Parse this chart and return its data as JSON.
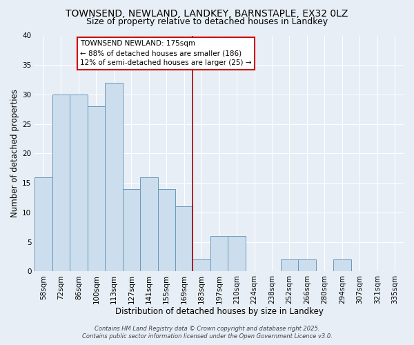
{
  "title": "TOWNSEND, NEWLAND, LANDKEY, BARNSTAPLE, EX32 0LZ",
  "subtitle": "Size of property relative to detached houses in Landkey",
  "xlabel": "Distribution of detached houses by size in Landkey",
  "ylabel": "Number of detached properties",
  "bar_labels": [
    "58sqm",
    "72sqm",
    "86sqm",
    "100sqm",
    "113sqm",
    "127sqm",
    "141sqm",
    "155sqm",
    "169sqm",
    "183sqm",
    "197sqm",
    "210sqm",
    "224sqm",
    "238sqm",
    "252sqm",
    "266sqm",
    "280sqm",
    "294sqm",
    "307sqm",
    "321sqm",
    "335sqm"
  ],
  "bar_values": [
    16,
    30,
    30,
    28,
    32,
    14,
    16,
    14,
    11,
    2,
    6,
    6,
    0,
    0,
    2,
    2,
    0,
    2,
    0,
    0,
    0
  ],
  "bar_color": "#ccdded",
  "bar_edgecolor": "#6699bb",
  "vline_color": "#aa0000",
  "ylim": [
    0,
    40
  ],
  "yticks": [
    0,
    5,
    10,
    15,
    20,
    25,
    30,
    35,
    40
  ],
  "annotation_title": "TOWNSEND NEWLAND: 175sqm",
  "annotation_line1": "← 88% of detached houses are smaller (186)",
  "annotation_line2": "12% of semi-detached houses are larger (25) →",
  "annotation_box_facecolor": "#ffffff",
  "annotation_box_edgecolor": "#cc0000",
  "footer1": "Contains HM Land Registry data © Crown copyright and database right 2025.",
  "footer2": "Contains public sector information licensed under the Open Government Licence v3.0.",
  "bg_color": "#e8eef5",
  "plot_bg_color": "#e8eef5",
  "title_fontsize": 10,
  "subtitle_fontsize": 9,
  "axis_label_fontsize": 8.5,
  "tick_fontsize": 7.5,
  "footer_fontsize": 6,
  "annotation_fontsize": 7.5
}
